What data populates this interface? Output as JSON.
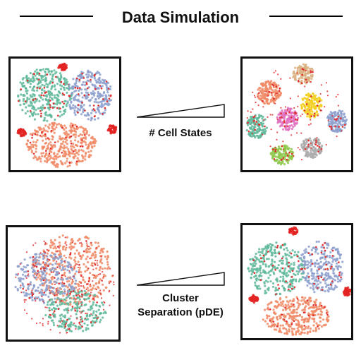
{
  "title": "Data Simulation",
  "rows": [
    {
      "label_lines": [
        "# Cell States"
      ]
    },
    {
      "label_lines": [
        "Cluster",
        "Separation (pDE)"
      ]
    }
  ],
  "colors": {
    "teal": "#5fb89a",
    "salmon": "#f08a65",
    "blue": "#8c9fcc",
    "red": "#e32222",
    "pink": "#e070c0",
    "yellow": "#f2cf1e",
    "tan": "#d9b182",
    "gray": "#aaaaaa",
    "green": "#8dc84a",
    "outlier": "#e03030"
  }
}
